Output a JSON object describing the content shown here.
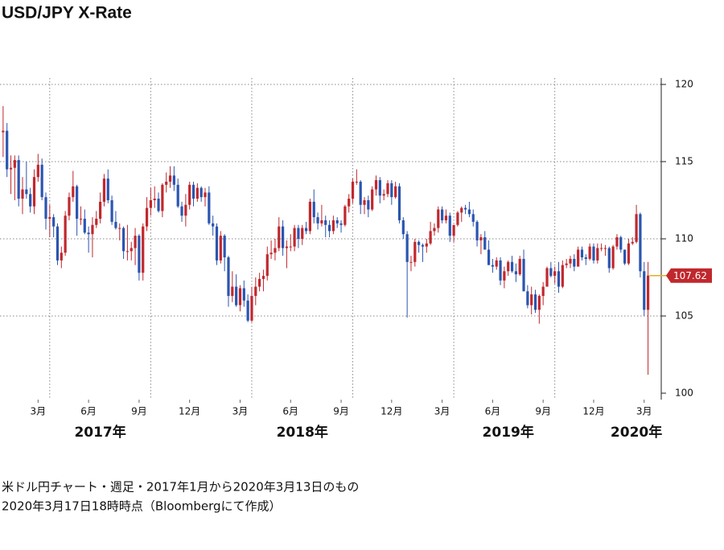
{
  "chart_data": {
    "type": "candlestick",
    "title": "USD/JPY X-Rate",
    "caption": [
      "米ドル円チャート・週足・2017年1月から2020年3月13日のもの",
      "2020年3月17日18時時点（Bloombergにて作成）"
    ],
    "up_color": "#c0282d",
    "down_color": "#2b55b0",
    "last_color": "#c0282d",
    "last_line_color": "#e0b020",
    "xlim": [
      -0.8,
      169.4
    ],
    "ylim": [
      100,
      120
    ],
    "yticks": [
      100,
      105,
      110,
      115,
      120
    ],
    "grid": true,
    "xticks": [
      {
        "value": 9,
        "label": "3月"
      },
      {
        "value": 22,
        "label": "6月"
      },
      {
        "value": 35,
        "label": "9月"
      },
      {
        "value": 48,
        "label": "12月"
      },
      {
        "value": 61,
        "label": "3月"
      },
      {
        "value": 74,
        "label": "6月"
      },
      {
        "value": 87,
        "label": "9月"
      },
      {
        "value": 100,
        "label": "12月"
      },
      {
        "value": 113,
        "label": "3月"
      },
      {
        "value": 126,
        "label": "6月"
      },
      {
        "value": 139,
        "label": "9月"
      },
      {
        "value": 152,
        "label": "12月"
      },
      {
        "value": 165,
        "label": "3月"
      }
    ],
    "xgrid": [
      12,
      38,
      64,
      90,
      116,
      142
    ],
    "year_labels": [
      {
        "value": 25,
        "label": "2017年"
      },
      {
        "value": 77,
        "label": "2018年"
      },
      {
        "value": 130,
        "label": "2019年"
      },
      {
        "value": 163,
        "label": "2020年"
      }
    ],
    "candles": [
      [
        116.9,
        118.6,
        115.3,
        117.0
      ],
      [
        117.0,
        117.5,
        114.0,
        114.5
      ],
      [
        114.5,
        115.4,
        112.9,
        114.6
      ],
      [
        114.6,
        115.4,
        112.5,
        115.1
      ],
      [
        115.1,
        115.4,
        112.1,
        112.6
      ],
      [
        112.6,
        114.0,
        111.6,
        113.2
      ],
      [
        113.2,
        115.0,
        112.6,
        112.9
      ],
      [
        112.9,
        113.3,
        111.7,
        112.1
      ],
      [
        112.1,
        114.5,
        111.6,
        114.0
      ],
      [
        114.0,
        115.5,
        113.7,
        114.8
      ],
      [
        114.8,
        115.2,
        112.5,
        112.7
      ],
      [
        112.7,
        113.0,
        110.6,
        111.3
      ],
      [
        111.3,
        112.2,
        110.1,
        111.4
      ],
      [
        111.4,
        111.6,
        110.1,
        110.8
      ],
      [
        110.8,
        111.0,
        108.3,
        108.6
      ],
      [
        108.6,
        109.5,
        108.1,
        109.1
      ],
      [
        109.1,
        111.8,
        108.9,
        111.5
      ],
      [
        111.5,
        113.0,
        111.2,
        112.7
      ],
      [
        112.7,
        114.4,
        112.4,
        113.4
      ],
      [
        113.4,
        113.5,
        110.2,
        111.3
      ],
      [
        111.3,
        112.1,
        110.9,
        111.3
      ],
      [
        111.3,
        111.9,
        110.3,
        110.4
      ],
      [
        110.4,
        110.8,
        109.1,
        110.3
      ],
      [
        110.3,
        111.4,
        108.8,
        110.9
      ],
      [
        110.9,
        111.8,
        110.7,
        111.3
      ],
      [
        111.3,
        113.0,
        111.0,
        112.4
      ],
      [
        112.4,
        114.2,
        112.1,
        113.9
      ],
      [
        113.9,
        114.5,
        112.3,
        112.5
      ],
      [
        112.5,
        112.8,
        110.9,
        111.1
      ],
      [
        111.1,
        111.8,
        110.6,
        110.7
      ],
      [
        110.7,
        111.0,
        109.9,
        110.7
      ],
      [
        110.7,
        110.8,
        108.7,
        109.2
      ],
      [
        109.2,
        110.9,
        108.6,
        109.2
      ],
      [
        109.2,
        109.8,
        108.6,
        109.4
      ],
      [
        109.4,
        110.7,
        108.3,
        110.2
      ],
      [
        110.2,
        110.3,
        107.3,
        107.8
      ],
      [
        107.8,
        111.0,
        107.3,
        110.8
      ],
      [
        110.8,
        112.7,
        110.5,
        112.0
      ],
      [
        112.0,
        113.3,
        111.5,
        112.5
      ],
      [
        112.5,
        113.4,
        112.0,
        112.6
      ],
      [
        112.6,
        113.0,
        111.7,
        111.8
      ],
      [
        111.8,
        113.6,
        111.4,
        113.5
      ],
      [
        113.5,
        114.3,
        113.0,
        113.7
      ],
      [
        113.7,
        114.7,
        113.3,
        114.1
      ],
      [
        114.1,
        114.7,
        113.1,
        113.5
      ],
      [
        113.5,
        113.9,
        112.0,
        112.1
      ],
      [
        112.1,
        112.4,
        111.1,
        111.5
      ],
      [
        111.5,
        112.9,
        110.8,
        112.2
      ],
      [
        112.2,
        113.7,
        111.9,
        113.5
      ],
      [
        113.5,
        113.7,
        112.1,
        112.6
      ],
      [
        112.6,
        113.6,
        112.4,
        113.3
      ],
      [
        113.3,
        113.4,
        112.4,
        112.7
      ],
      [
        112.7,
        113.3,
        112.1,
        113.0
      ],
      [
        113.0,
        113.4,
        110.9,
        111.0
      ],
      [
        111.0,
        111.5,
        110.2,
        110.8
      ],
      [
        110.8,
        111.0,
        108.3,
        108.6
      ],
      [
        108.6,
        110.5,
        108.4,
        110.2
      ],
      [
        110.2,
        110.3,
        107.9,
        108.8
      ],
      [
        108.8,
        108.9,
        105.6,
        106.3
      ],
      [
        106.3,
        107.9,
        105.9,
        106.9
      ],
      [
        106.9,
        107.7,
        105.6,
        105.7
      ],
      [
        105.7,
        107.0,
        105.3,
        106.8
      ],
      [
        106.8,
        107.3,
        105.6,
        106.0
      ],
      [
        106.0,
        106.4,
        104.6,
        104.7
      ],
      [
        104.7,
        106.9,
        104.6,
        106.3
      ],
      [
        106.3,
        107.5,
        105.7,
        106.9
      ],
      [
        106.9,
        107.8,
        106.6,
        107.4
      ],
      [
        107.4,
        108.0,
        106.6,
        107.6
      ],
      [
        107.6,
        109.5,
        107.3,
        109.0
      ],
      [
        109.0,
        109.9,
        108.7,
        109.1
      ],
      [
        109.1,
        110.0,
        108.6,
        109.4
      ],
      [
        109.4,
        111.4,
        109.2,
        110.8
      ],
      [
        110.8,
        111.2,
        108.9,
        109.4
      ],
      [
        109.4,
        109.9,
        108.1,
        109.5
      ],
      [
        109.5,
        110.3,
        109.2,
        109.5
      ],
      [
        109.5,
        110.9,
        109.2,
        110.7
      ],
      [
        110.7,
        110.9,
        109.4,
        110.0
      ],
      [
        110.0,
        110.9,
        109.6,
        110.7
      ],
      [
        110.7,
        111.1,
        110.3,
        110.5
      ],
      [
        110.5,
        112.6,
        110.3,
        112.4
      ],
      [
        112.4,
        113.2,
        111.0,
        111.4
      ],
      [
        111.4,
        111.7,
        110.6,
        111.0
      ],
      [
        111.0,
        112.2,
        110.8,
        111.2
      ],
      [
        111.2,
        111.5,
        110.1,
        110.9
      ],
      [
        110.9,
        111.2,
        110.1,
        110.5
      ],
      [
        110.5,
        111.5,
        110.3,
        111.2
      ],
      [
        111.2,
        111.4,
        110.7,
        111.0
      ],
      [
        111.0,
        111.2,
        110.4,
        110.9
      ],
      [
        110.9,
        112.2,
        110.8,
        112.1
      ],
      [
        112.1,
        112.9,
        111.7,
        112.6
      ],
      [
        112.6,
        113.9,
        112.3,
        113.7
      ],
      [
        113.7,
        114.5,
        113.5,
        113.7
      ],
      [
        113.7,
        113.8,
        111.6,
        112.2
      ],
      [
        112.2,
        112.7,
        111.6,
        112.5
      ],
      [
        112.5,
        112.8,
        111.4,
        111.9
      ],
      [
        111.9,
        113.4,
        111.8,
        113.2
      ],
      [
        113.2,
        114.1,
        112.8,
        113.8
      ],
      [
        113.8,
        114.0,
        112.3,
        112.8
      ],
      [
        112.8,
        113.2,
        112.5,
        112.9
      ],
      [
        112.9,
        113.8,
        112.7,
        113.6
      ],
      [
        113.6,
        113.8,
        112.2,
        112.7
      ],
      [
        112.7,
        113.7,
        112.6,
        113.4
      ],
      [
        113.4,
        113.6,
        111.0,
        111.2
      ],
      [
        111.2,
        111.4,
        110.0,
        110.3
      ],
      [
        110.3,
        110.5,
        104.9,
        108.5
      ],
      [
        108.5,
        108.9,
        107.9,
        108.5
      ],
      [
        108.5,
        110.0,
        108.2,
        109.8
      ],
      [
        109.8,
        109.9,
        109.1,
        109.6
      ],
      [
        109.6,
        109.7,
        108.5,
        109.5
      ],
      [
        109.5,
        110.0,
        109.1,
        109.7
      ],
      [
        109.7,
        111.1,
        109.6,
        110.5
      ],
      [
        110.5,
        111.0,
        110.2,
        110.7
      ],
      [
        110.7,
        112.1,
        110.4,
        111.9
      ],
      [
        111.9,
        112.1,
        111.0,
        111.2
      ],
      [
        111.2,
        111.9,
        111.0,
        111.5
      ],
      [
        111.5,
        111.7,
        109.8,
        110.2
      ],
      [
        110.2,
        110.9,
        109.8,
        110.9
      ],
      [
        110.9,
        111.8,
        110.8,
        111.7
      ],
      [
        111.7,
        112.1,
        111.1,
        112.0
      ],
      [
        112.0,
        112.2,
        111.6,
        111.9
      ],
      [
        111.9,
        112.4,
        111.4,
        111.6
      ],
      [
        111.6,
        111.9,
        110.8,
        111.1
      ],
      [
        111.1,
        111.2,
        109.5,
        109.9
      ],
      [
        109.9,
        110.3,
        109.0,
        110.1
      ],
      [
        110.1,
        110.5,
        109.3,
        109.3
      ],
      [
        109.3,
        109.9,
        108.3,
        108.3
      ],
      [
        108.3,
        108.7,
        107.8,
        108.2
      ],
      [
        108.2,
        108.8,
        108.0,
        108.6
      ],
      [
        108.6,
        108.8,
        107.0,
        107.3
      ],
      [
        107.3,
        108.2,
        106.8,
        107.9
      ],
      [
        107.9,
        108.6,
        107.6,
        108.5
      ],
      [
        108.5,
        108.9,
        107.8,
        107.9
      ],
      [
        107.9,
        108.4,
        107.2,
        107.7
      ],
      [
        107.7,
        108.9,
        107.6,
        108.7
      ],
      [
        108.7,
        109.3,
        106.6,
        106.6
      ],
      [
        106.6,
        107.0,
        105.5,
        105.7
      ],
      [
        105.7,
        106.9,
        105.1,
        106.4
      ],
      [
        106.4,
        106.7,
        105.2,
        105.4
      ],
      [
        105.4,
        106.4,
        104.5,
        106.3
      ],
      [
        106.3,
        107.2,
        105.7,
        106.9
      ],
      [
        106.9,
        108.2,
        106.9,
        108.1
      ],
      [
        108.1,
        108.5,
        107.5,
        107.6
      ],
      [
        107.6,
        108.2,
        107.1,
        107.9
      ],
      [
        107.9,
        108.5,
        106.5,
        106.9
      ],
      [
        106.9,
        108.6,
        106.8,
        108.3
      ],
      [
        108.3,
        108.7,
        108.1,
        108.4
      ],
      [
        108.4,
        108.9,
        108.1,
        108.7
      ],
      [
        108.7,
        109.0,
        107.9,
        108.2
      ],
      [
        108.2,
        109.5,
        108.2,
        109.3
      ],
      [
        109.3,
        109.5,
        108.6,
        108.8
      ],
      [
        108.8,
        109.0,
        108.3,
        108.7
      ],
      [
        108.7,
        109.7,
        108.6,
        109.5
      ],
      [
        109.5,
        109.7,
        108.4,
        108.6
      ],
      [
        108.6,
        109.7,
        108.4,
        109.4
      ],
      [
        109.4,
        109.7,
        109.2,
        109.4
      ],
      [
        109.4,
        109.6,
        108.9,
        109.4
      ],
      [
        109.4,
        109.5,
        107.8,
        108.1
      ],
      [
        108.1,
        109.6,
        108.0,
        109.5
      ],
      [
        109.5,
        110.3,
        109.3,
        110.1
      ],
      [
        110.1,
        110.2,
        109.1,
        109.3
      ],
      [
        109.3,
        109.3,
        108.3,
        108.4
      ],
      [
        108.4,
        110.0,
        108.3,
        109.7
      ],
      [
        109.7,
        110.1,
        109.6,
        109.8
      ],
      [
        109.8,
        112.2,
        109.7,
        111.6
      ],
      [
        111.6,
        111.7,
        107.5,
        107.9
      ],
      [
        107.9,
        108.5,
        105.0,
        105.4
      ],
      [
        105.4,
        108.5,
        101.2,
        107.62
      ]
    ]
  }
}
